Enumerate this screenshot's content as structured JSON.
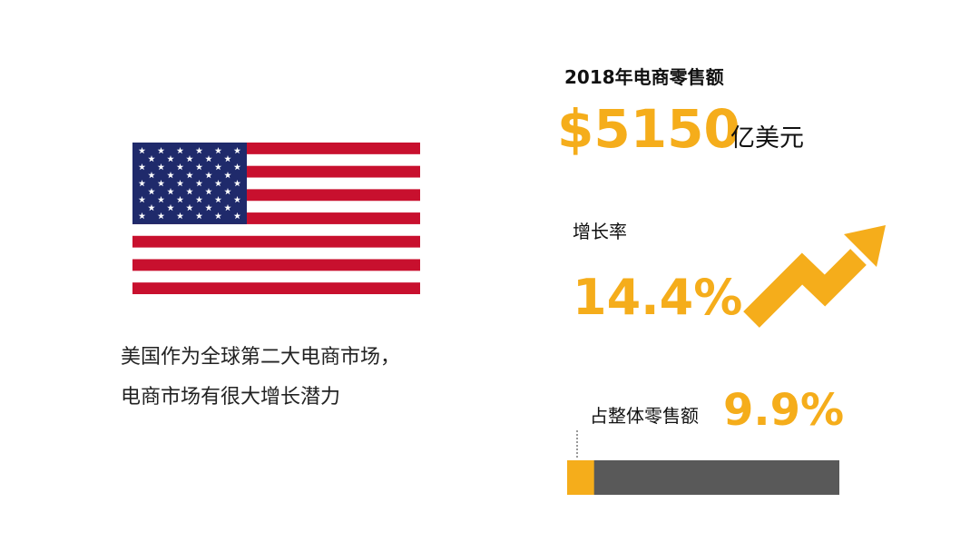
{
  "description": {
    "lines": [
      "美国作为全球第二大电商市场，",
      "电商市场有很大增长潜力"
    ]
  },
  "sales": {
    "label": "2018年电商零售额",
    "amount": "$5150",
    "unit": "亿美元"
  },
  "growth": {
    "label": "增长率",
    "rate": "14.4%"
  },
  "share": {
    "label": "占整体零售额",
    "value": 9.9,
    "value_label": "9.9%"
  }
}
